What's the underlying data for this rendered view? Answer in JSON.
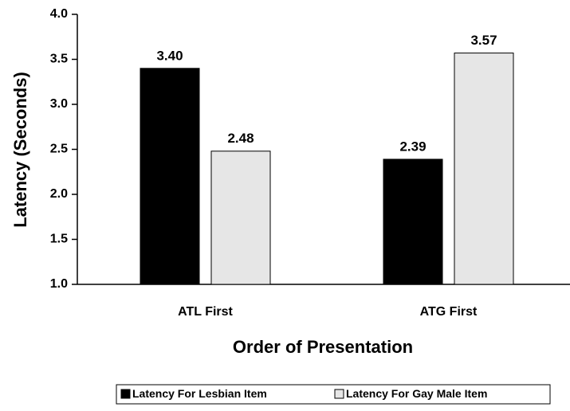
{
  "chart_data": {
    "type": "bar",
    "x_label": "Order of Presentation",
    "y_label": "Latency (Seconds)",
    "categories": [
      "ATL First",
      "ATG First"
    ],
    "series": [
      {
        "name": "Latency For Lesbian Item",
        "color": "#000000",
        "values": [
          3.4,
          2.39
        ],
        "value_labels": [
          "3.40",
          "2.39"
        ]
      },
      {
        "name": "Latency For Gay Male Item",
        "color": "#e6e6e6",
        "values": [
          2.48,
          3.57
        ],
        "value_labels": [
          "2.48",
          "3.57"
        ]
      }
    ],
    "ylim": [
      1,
      4
    ],
    "yticks": [
      {
        "value": 1,
        "label": "1.0"
      },
      1.5,
      {
        "value": 2,
        "label": "2.0"
      },
      2.5,
      {
        "value": 3,
        "label": "3.0"
      },
      3.5,
      {
        "value": 4,
        "label": "4.0"
      }
    ],
    "grid": false,
    "legend": "bottom"
  }
}
